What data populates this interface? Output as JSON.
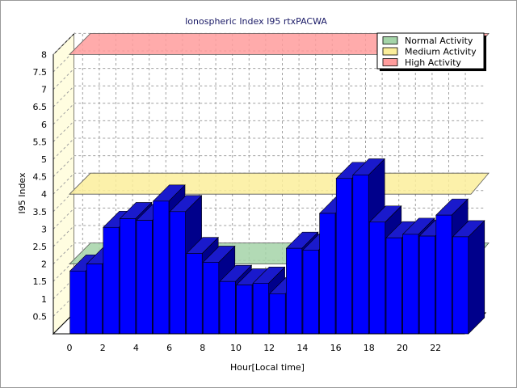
{
  "chart_data": {
    "type": "bar",
    "title": "Ionospheric Index I95 rtxPACWA",
    "xlabel": "Hour[Local time]",
    "ylabel": "I95 Index",
    "x": [
      0,
      1,
      2,
      3,
      4,
      5,
      6,
      7,
      8,
      9,
      10,
      11,
      12,
      13,
      14,
      15,
      16,
      17,
      18,
      19,
      20,
      21,
      22,
      23
    ],
    "x_tick_labels": [
      "0",
      "2",
      "4",
      "6",
      "8",
      "10",
      "12",
      "14",
      "16",
      "18",
      "20",
      "22"
    ],
    "values": [
      1.8,
      2.0,
      3.05,
      3.3,
      3.25,
      3.8,
      3.5,
      2.3,
      2.05,
      1.5,
      1.4,
      1.45,
      1.15,
      2.45,
      2.4,
      3.45,
      4.45,
      4.55,
      3.2,
      2.75,
      2.85,
      2.8,
      3.4,
      2.78
    ],
    "ylim": [
      0,
      8
    ],
    "y_tick_labels": [
      "0.5",
      "1",
      "1.5",
      "2",
      "2.5",
      "3",
      "3.5",
      "4",
      "4.5",
      "5",
      "5.5",
      "6",
      "6.5",
      "7",
      "7.5",
      "8"
    ],
    "grid": true,
    "legend_position": "top-right",
    "activity_levels": [
      {
        "name": "Normal Activity",
        "value": 2.0,
        "color": "#a4d4a8"
      },
      {
        "name": "Medium Activity",
        "value": 4.0,
        "color": "#fbee9b"
      },
      {
        "name": "High Activity",
        "value": 8.0,
        "color": "#ff9c9c"
      }
    ],
    "colors": {
      "bar_front": "#0000ff",
      "bar_side": "#00008b",
      "bar_top": "#1a1acc",
      "wall": "#fffde0",
      "grid": "#a0a0a0"
    }
  }
}
